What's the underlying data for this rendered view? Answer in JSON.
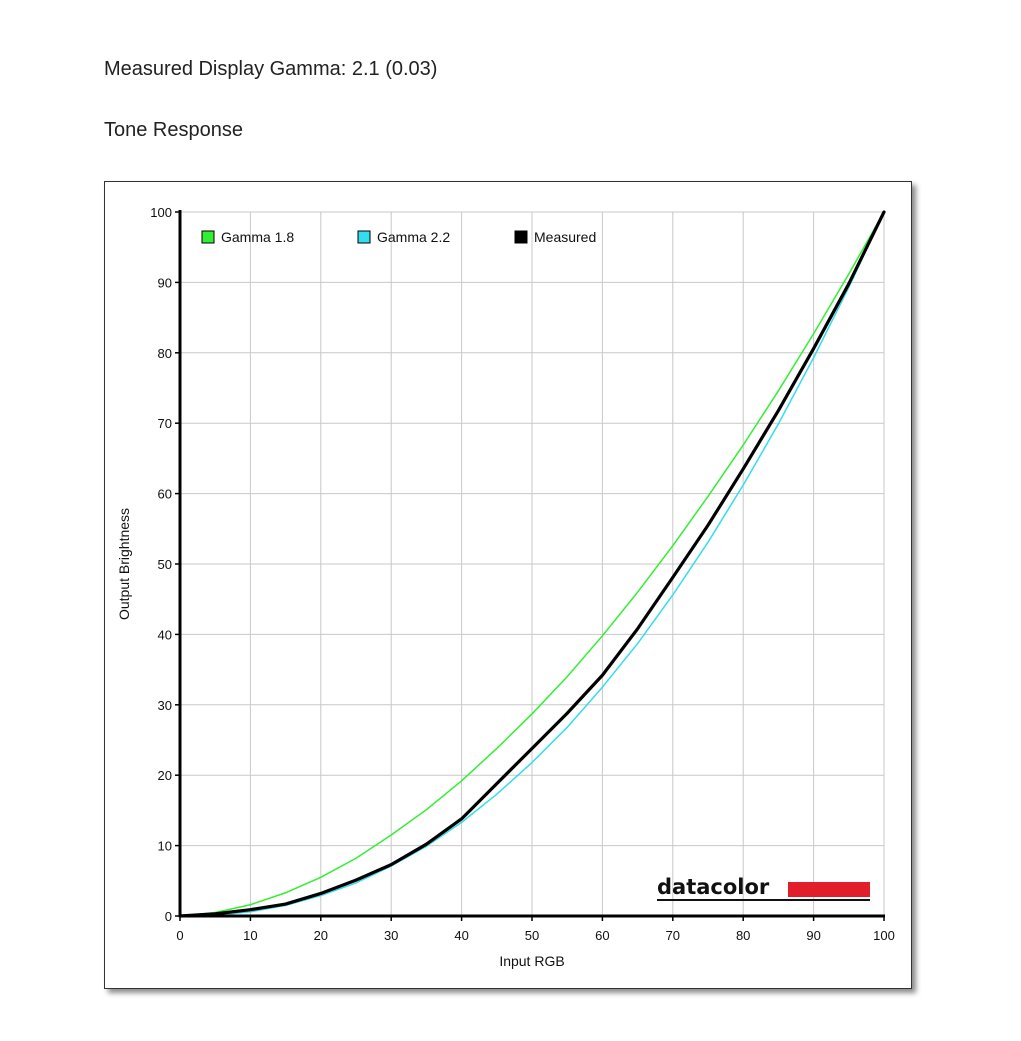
{
  "report": {
    "measured_gamma_label": "Measured Display Gamma: 2.1 (0.03)",
    "section_title": "Tone Response"
  },
  "brand": {
    "name": "datacolor",
    "bar_color": "#e31e2b"
  },
  "chart_data": {
    "type": "line",
    "xlabel": "Input RGB",
    "ylabel": "Output Brightness",
    "xlim": [
      0,
      100
    ],
    "ylim": [
      0,
      100
    ],
    "xticks": [
      0,
      10,
      20,
      30,
      40,
      50,
      60,
      70,
      80,
      90,
      100
    ],
    "yticks": [
      0,
      10,
      20,
      30,
      40,
      50,
      60,
      70,
      80,
      90,
      100
    ],
    "grid": true,
    "legend_position": "top-left",
    "series": [
      {
        "name": "Gamma 1.8",
        "color": "#33ee33",
        "x": [
          0,
          5,
          10,
          15,
          20,
          25,
          30,
          35,
          40,
          45,
          50,
          55,
          60,
          65,
          70,
          75,
          80,
          85,
          90,
          95,
          100
        ],
        "y": [
          0,
          0.5,
          1.6,
          3.3,
          5.5,
          8.2,
          11.5,
          15.1,
          19.2,
          23.8,
          28.7,
          34.0,
          39.8,
          46.0,
          52.6,
          59.6,
          66.9,
          74.6,
          82.7,
          91.2,
          100
        ]
      },
      {
        "name": "Gamma 2.2",
        "color": "#33ddee",
        "x": [
          0,
          5,
          10,
          15,
          20,
          25,
          30,
          35,
          40,
          45,
          50,
          55,
          60,
          65,
          70,
          75,
          80,
          85,
          90,
          95,
          100
        ],
        "y": [
          0,
          0.1,
          0.6,
          1.5,
          2.9,
          4.7,
          7.1,
          9.9,
          13.3,
          17.3,
          21.8,
          26.8,
          32.5,
          38.7,
          45.6,
          53.1,
          61.2,
          69.9,
          79.3,
          89.3,
          100
        ]
      },
      {
        "name": "Measured",
        "color": "#000000",
        "x": [
          0,
          5,
          10,
          15,
          20,
          25,
          30,
          35,
          40,
          45,
          50,
          55,
          60,
          65,
          70,
          75,
          80,
          85,
          90,
          95,
          100
        ],
        "y": [
          0,
          0.3,
          0.9,
          1.7,
          3.2,
          5.1,
          7.3,
          10.2,
          13.8,
          18.8,
          23.8,
          28.8,
          34.2,
          40.8,
          48.1,
          55.5,
          63.5,
          71.8,
          80.6,
          89.8,
          100
        ]
      }
    ]
  }
}
